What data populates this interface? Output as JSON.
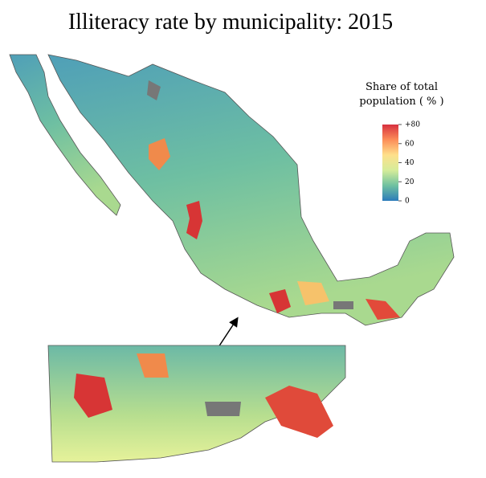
{
  "title": "Illiteracy rate by municipality: 2015",
  "legend": {
    "title": [
      "Share of total",
      "population ( % )"
    ],
    "range": [
      0,
      80
    ],
    "ticks": [
      0,
      20,
      40,
      60,
      {
        "value": 80,
        "label": "+80"
      }
    ],
    "colors": [
      "#2b7bba",
      "#6fc1a0",
      "#d5ec9a",
      "#fee08b",
      "#fc8d59",
      "#d7303f"
    ]
  }
}
